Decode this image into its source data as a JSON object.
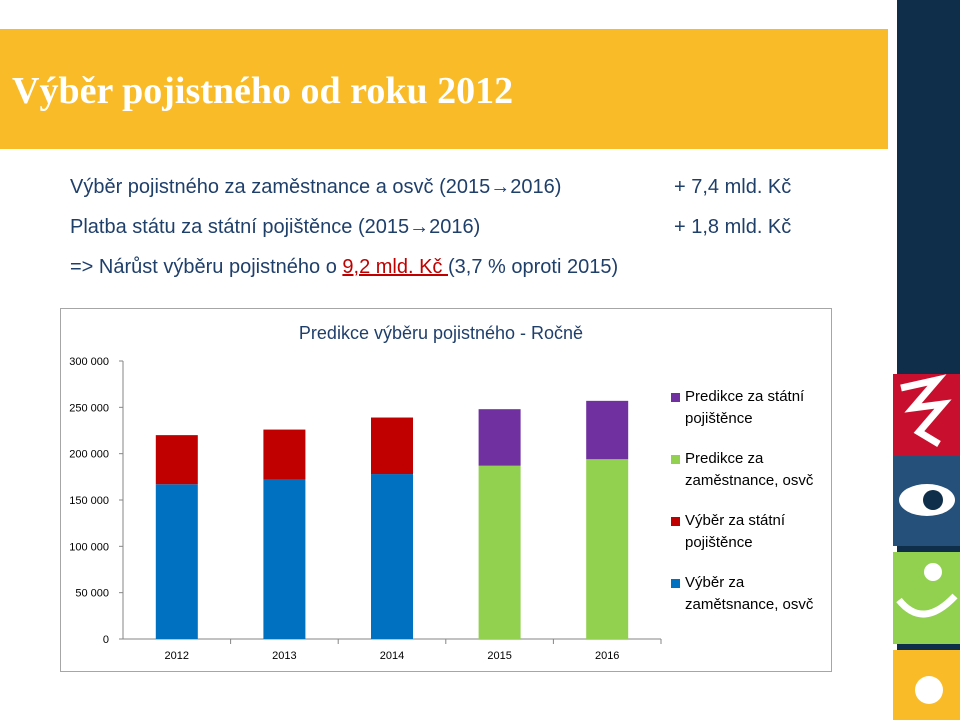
{
  "slide": {
    "title": "Výběr pojistného od roku 2012",
    "bullets": [
      {
        "left": "Výběr pojistného za zaměstnance a osvč (2015→2016)",
        "right": "+ 7,4 mld. Kč"
      },
      {
        "left": "Platba státu za státní pojištěnce (2015→2016)",
        "right": "+ 1,8 mld. Kč"
      }
    ],
    "summary": {
      "prefix": "=> Nárůst výběru pojistného o ",
      "highlight": "9,2 mld. Kč ",
      "suffix": "(3,7 % oproti 2015)"
    }
  },
  "colors": {
    "banner": "#f9bc28",
    "title_text": "#ffffff",
    "body_text": "#1f3f6b",
    "highlight": "#c00000",
    "sidebar": "#0e2e4a"
  },
  "chart_data": {
    "type": "bar",
    "stacked": true,
    "title": "Predikce výběru pojistného - Ročně",
    "categories": [
      "2012",
      "2013",
      "2014",
      "2015",
      "2016"
    ],
    "ylim": [
      0,
      300000
    ],
    "yticks": [
      "0",
      "50 000",
      "100 000",
      "150 000",
      "200 000",
      "250 000",
      "300 000"
    ],
    "grid": false,
    "legend_position": "right",
    "series": [
      {
        "name": "Výběr za zamětsnance, osvč",
        "color": "#0070c0",
        "values": [
          167000,
          172000,
          178000,
          null,
          null
        ]
      },
      {
        "name": "Výběr za státní pojištěnce",
        "color": "#c00000",
        "values": [
          53000,
          54000,
          61000,
          null,
          null
        ]
      },
      {
        "name": "Predikce za zaměstnance, osvč",
        "color": "#92d050",
        "values": [
          null,
          null,
          null,
          187000,
          194000
        ]
      },
      {
        "name": "Predikce za státní pojištěnce",
        "color": "#7030a0",
        "values": [
          null,
          null,
          null,
          61000,
          63000
        ]
      }
    ],
    "legend_order": [
      3,
      2,
      1,
      0
    ]
  }
}
